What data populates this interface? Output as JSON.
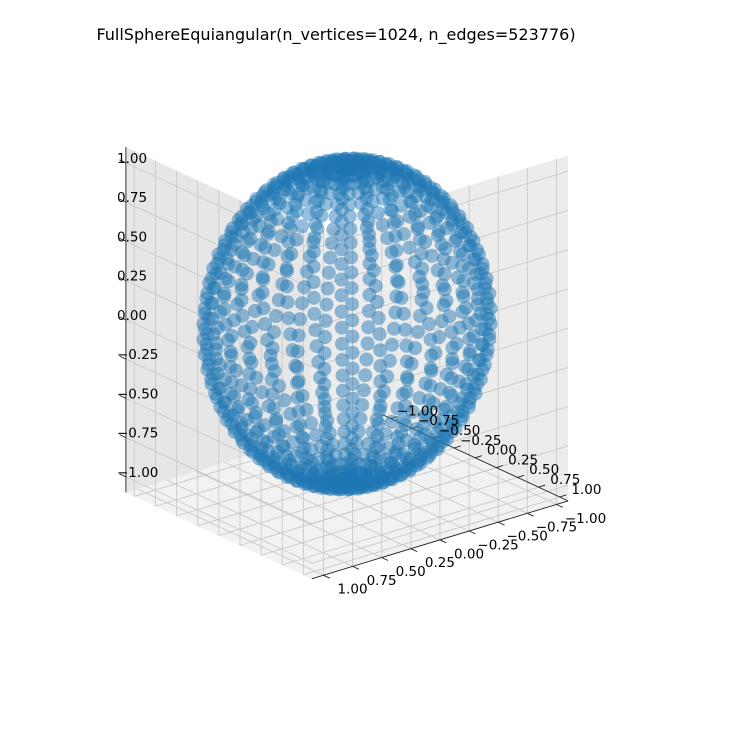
{
  "chart_data": {
    "type": "scatter",
    "projection": "3d",
    "title": "FullSphereEquiangular(n_vertices=1024, n_edges=523776)",
    "xlabel": "",
    "ylabel": "",
    "zlabel": "",
    "xlim": [
      -1.1,
      1.1
    ],
    "ylim": [
      -1.1,
      1.1
    ],
    "zlim": [
      -1.1,
      1.1
    ],
    "x_ticks": [
      "−1.00",
      "−0.75",
      "−0.50",
      "−0.25",
      "0.00",
      "0.25",
      "0.50",
      "0.75",
      "1.00"
    ],
    "y_ticks": [
      "−1.00",
      "−0.75",
      "−0.50",
      "−0.25",
      "0.00",
      "0.25",
      "0.50",
      "0.75",
      "1.00"
    ],
    "z_ticks": [
      "−1.00",
      "−0.75",
      "−0.50",
      "−0.25",
      "0.00",
      "0.25",
      "0.50",
      "0.75",
      "1.00"
    ],
    "grid": true,
    "marker_color": "#1f77b4",
    "marker_alpha": 0.5,
    "point_set": {
      "kind": "equiangular sphere grid",
      "n_vertices": 1024,
      "n_latitudes": 32,
      "n_longitudes": 32,
      "radius": 1.0
    }
  }
}
